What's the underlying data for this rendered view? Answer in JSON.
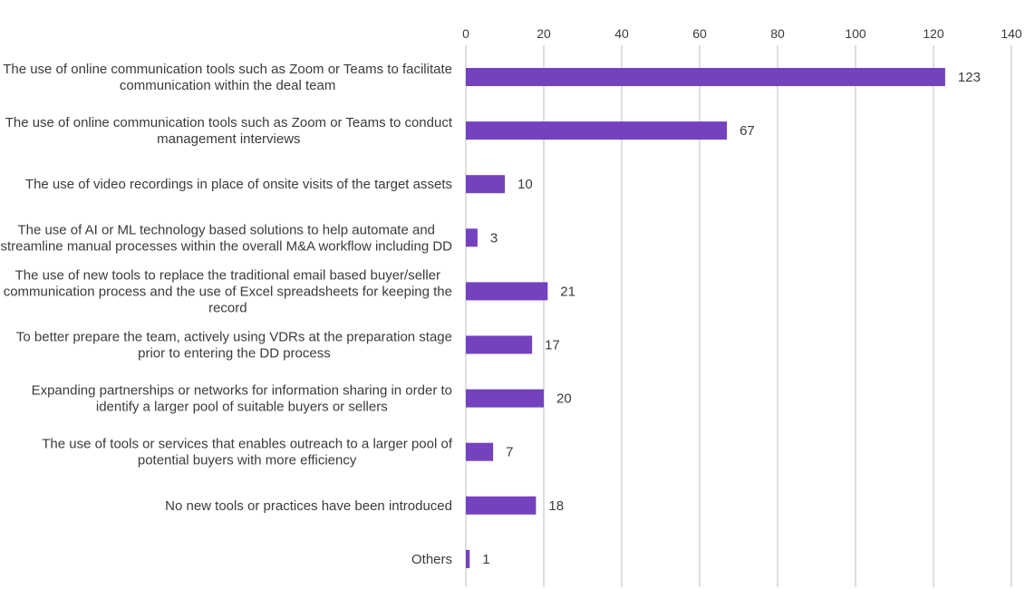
{
  "chart_data": {
    "type": "bar",
    "orientation": "horizontal",
    "title": "",
    "xlabel": "",
    "ylabel": "",
    "xlim": [
      0,
      140
    ],
    "x_ticks": [
      0,
      20,
      40,
      60,
      80,
      100,
      120,
      140
    ],
    "grid": true,
    "legend": "none",
    "bar_color": "#7442bf",
    "categories": [
      "The use of online communication tools such as Zoom or Teams to facilitate communication within the deal team",
      "The use of online communication tools such as Zoom or Teams to conduct management interviews",
      "The use of video recordings in place of onsite visits of the target assets",
      "The use of AI or ML technology based solutions to help automate and streamline manual processes within the overall M&A workflow including DD",
      "The use of new tools to replace the traditional email based buyer/seller communication process and the use of Excel spreadsheets for keeping the record",
      "To better prepare the team, actively using VDRs at the preparation stage prior to entering the DD process",
      "Expanding partnerships or networks for information sharing in order to identify a larger pool of suitable buyers or sellers",
      "The use of tools or services that enables outreach to a larger pool of potential buyers with more efficiency",
      "No new tools or practices have been introduced",
      "Others"
    ],
    "values": [
      123,
      67,
      10,
      3,
      21,
      17,
      20,
      7,
      18,
      1
    ]
  }
}
